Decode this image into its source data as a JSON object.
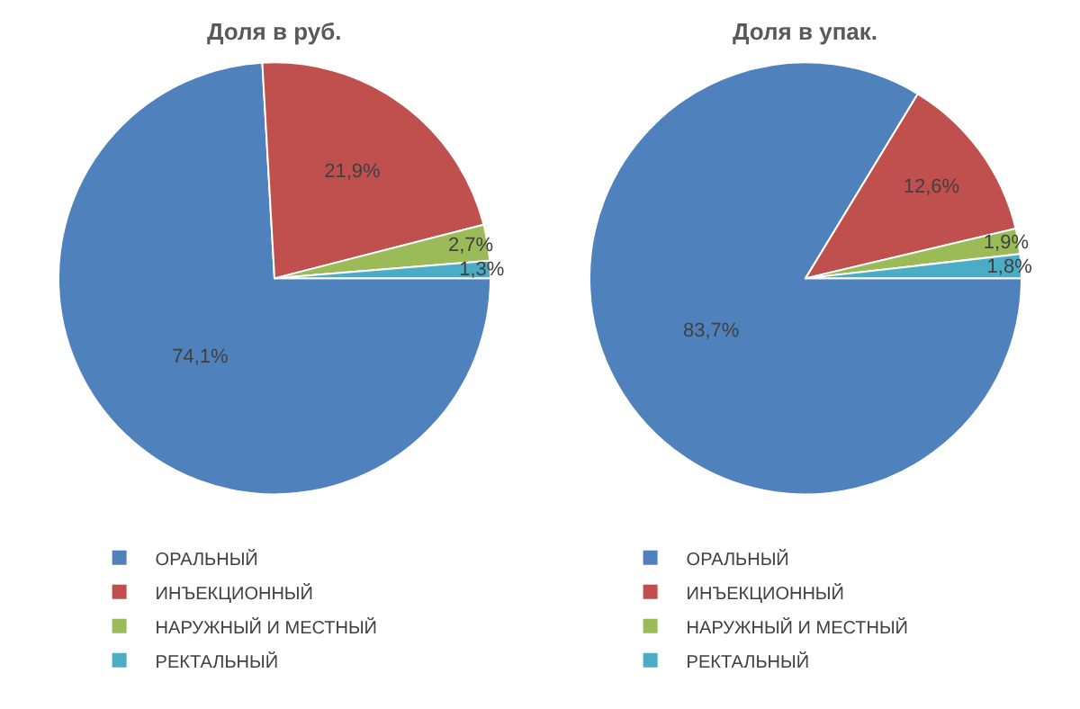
{
  "chart_data": [
    {
      "type": "pie",
      "title": "Доля в руб.",
      "categories": [
        "ОРАЛЬНЫЙ",
        "ИНЪЕКЦИОННЫЙ",
        "НАРУЖНЫЙ И МЕСТНЫЙ",
        "РЕКТАЛЬНЫЙ"
      ],
      "values": [
        74.1,
        21.9,
        2.7,
        1.3
      ],
      "value_labels": [
        "74,1%",
        "21,9%",
        "2,7%",
        "1,3%"
      ],
      "colors": [
        "#4f81bd",
        "#c0504d",
        "#9bbb59",
        "#4bacc6"
      ],
      "legend": "bottom"
    },
    {
      "type": "pie",
      "title": "Доля в упак.",
      "categories": [
        "ОРАЛЬНЫЙ",
        "ИНЪЕКЦИОННЫЙ",
        "НАРУЖНЫЙ И МЕСТНЫЙ",
        "РЕКТАЛЬНЫЙ"
      ],
      "values": [
        83.7,
        12.6,
        1.9,
        1.8
      ],
      "value_labels": [
        "83,7%",
        "12,6%",
        "1,9%",
        "1,8%"
      ],
      "colors": [
        "#4f81bd",
        "#c0504d",
        "#9bbb59",
        "#4bacc6"
      ],
      "legend": "bottom"
    }
  ]
}
